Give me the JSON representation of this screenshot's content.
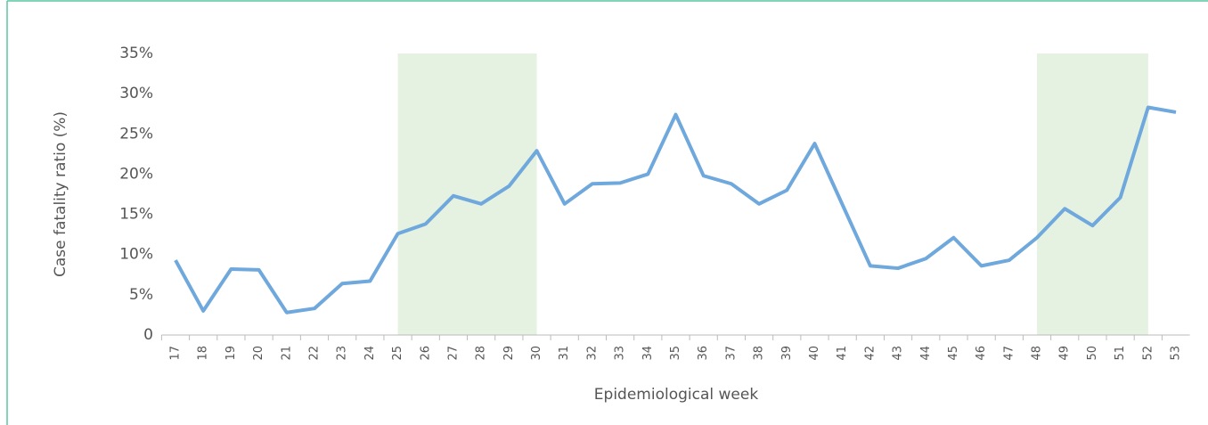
{
  "chart_data": {
    "type": "line",
    "y_label": "Case fatality ratio (%)",
    "x_label": "Epidemiological week",
    "categories": [
      "17",
      "18",
      "19",
      "20",
      "21",
      "22",
      "23",
      "24",
      "25",
      "26",
      "27",
      "28",
      "29",
      "30",
      "31",
      "32",
      "33",
      "34",
      "35",
      "36",
      "37",
      "38",
      "39",
      "40",
      "41",
      "42",
      "43",
      "44",
      "45",
      "46",
      "47",
      "48",
      "49",
      "50",
      "51",
      "52",
      "53"
    ],
    "series": [
      {
        "color": "#6fa8dc",
        "values": [
          9.3,
          3.0,
          8.2,
          8.1,
          2.8,
          3.3,
          6.4,
          6.7,
          12.6,
          13.8,
          17.3,
          16.3,
          18.5,
          22.9,
          16.3,
          18.8,
          18.9,
          20.0,
          27.4,
          19.8,
          18.8,
          16.3,
          18.0,
          23.8,
          16.2,
          8.6,
          8.3,
          9.5,
          12.1,
          8.6,
          9.3,
          12.1,
          15.7,
          13.6,
          17.1,
          28.3,
          27.7
        ]
      }
    ],
    "shaded_ranges": [
      {
        "from": "25",
        "to": "30"
      },
      {
        "from": "48",
        "to": "52"
      }
    ],
    "shade_color": "#e6f2e1",
    "ylim": [
      0,
      35
    ],
    "yticks": [
      0,
      {
        "value": 5,
        "label": "5%"
      },
      {
        "value": 10,
        "label": "10%"
      },
      {
        "value": 15,
        "label": "15%"
      },
      {
        "value": 20,
        "label": "20%"
      },
      {
        "value": 25,
        "label": "25%"
      },
      {
        "value": 30,
        "label": "30%"
      },
      {
        "value": 35,
        "label": "35%"
      }
    ],
    "grid": false
  }
}
